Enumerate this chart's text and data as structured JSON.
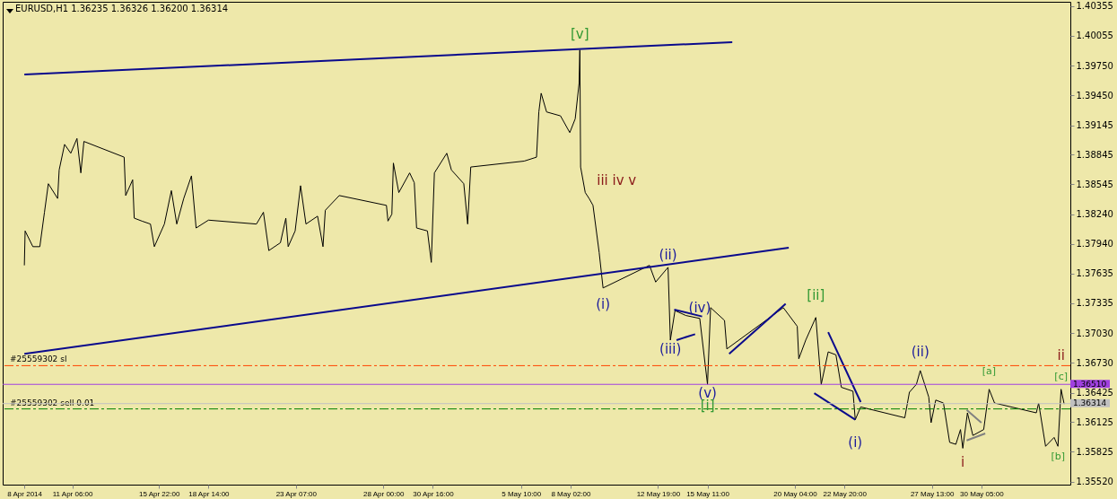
{
  "chart_data": {
    "type": "line",
    "title": "EURUSD,H1  1.36235 1.36326 1.36200 1.36314",
    "xlim": [
      "2014-04-07T12:00",
      "2014-06-04T00:00"
    ],
    "ylim": [
      1.3549,
      1.404
    ],
    "xticks": [
      {
        "value": "2014-04-08T16:00",
        "label": "8 Apr 2014"
      },
      {
        "value": "2014-04-11T06:00",
        "label": "11 Apr 06:00"
      },
      {
        "value": "2014-04-15T22:00",
        "label": "15 Apr 22:00"
      },
      {
        "value": "2014-04-18T14:00",
        "label": "18 Apr 14:00"
      },
      {
        "value": "2014-04-23T07:00",
        "label": "23 Apr 07:00"
      },
      {
        "value": "2014-04-28T00:00",
        "label": "28 Apr 00:00"
      },
      {
        "value": "2014-04-30T16:00",
        "label": "30 Apr 16:00"
      },
      {
        "value": "2014-05-05T10:00",
        "label": "5 May 10:00"
      },
      {
        "value": "2014-05-08T02:00",
        "label": "8 May 02:00"
      },
      {
        "value": "2014-05-12T19:00",
        "label": "12 May 19:00"
      },
      {
        "value": "2014-05-15T11:00",
        "label": "15 May 11:00"
      },
      {
        "value": "2014-05-20T04:00",
        "label": "20 May 04:00"
      },
      {
        "value": "2014-05-22T20:00",
        "label": "22 May 20:00"
      },
      {
        "value": "2014-05-27T13:00",
        "label": "27 May 13:00"
      },
      {
        "value": "2014-05-30T05:00",
        "label": "30 May 05:00"
      }
    ],
    "yticks": [
      1.40355,
      1.40055,
      {
        "value": 1.3975,
        "label": "1.39750"
      },
      {
        "value": 1.3945,
        "label": "1.39450"
      },
      1.39145,
      1.38845,
      1.38545,
      {
        "value": 1.3824,
        "label": "1.38240"
      },
      {
        "value": 1.3794,
        "label": "1.37940"
      },
      1.37635,
      1.37335,
      {
        "value": 1.3703,
        "label": "1.37030"
      },
      {
        "value": 1.3673,
        "label": "1.36730"
      },
      1.36425,
      1.36125,
      1.35825,
      {
        "value": 1.3552,
        "label": "1.35520"
      }
    ],
    "series": [
      {
        "color": "#000000",
        "x": [
          "2014-04-08T16:00",
          "2014-04-08T17:00",
          "2014-04-09T03:00",
          "2014-04-09T12:00",
          "2014-04-09T18:00",
          "2014-04-09T23:00",
          "2014-04-10T11:00",
          "2014-04-10T13:00",
          "2014-04-10T20:00",
          "2014-04-11T04:00",
          "2014-04-11T12:00",
          "2014-04-11T17:00",
          "2014-04-11T21:00",
          "2014-04-14T01:00",
          "2014-04-14T03:00",
          "2014-04-14T12:00",
          "2014-04-14T14:00",
          "2014-04-15T00:00",
          "2014-04-15T11:00",
          "2014-04-15T16:00",
          "2014-04-16T05:00",
          "2014-04-16T14:00",
          "2014-04-16T21:00",
          "2014-04-17T06:00",
          "2014-04-17T16:00",
          "2014-04-17T22:00",
          "2014-04-18T14:00",
          "2014-04-21T04:00",
          "2014-04-21T13:00",
          "2014-04-21T20:00",
          "2014-04-22T11:00",
          "2014-04-22T18:00",
          "2014-04-22T21:00",
          "2014-04-23T06:00",
          "2014-04-23T13:00",
          "2014-04-23T20:00",
          "2014-04-24T11:00",
          "2014-04-24T18:00",
          "2014-04-24T21:00",
          "2014-04-25T15:00",
          "2014-04-28T04:00",
          "2014-04-28T06:00",
          "2014-04-28T11:00",
          "2014-04-28T13:00",
          "2014-04-28T20:00",
          "2014-04-29T10:00",
          "2014-04-29T16:00",
          "2014-04-29T19:00",
          "2014-04-30T09:00",
          "2014-04-30T14:00",
          "2014-04-30T18:00",
          "2014-05-01T10:00",
          "2014-05-01T16:00",
          "2014-05-02T08:00",
          "2014-05-02T13:00",
          "2014-05-02T17:00",
          "2014-05-05T14:00",
          "2014-05-06T06:00",
          "2014-05-06T09:00",
          "2014-05-06T12:00",
          "2014-05-06T19:00",
          "2014-05-07T13:00",
          "2014-05-08T01:00",
          "2014-05-08T08:00",
          "2014-05-08T13:00",
          "2014-05-08T14:00",
          "2014-05-08T15:00",
          "2014-05-08T21:00",
          "2014-05-09T02:00",
          "2014-05-09T07:00",
          "2014-05-09T15:00",
          "2014-05-09T20:00",
          "2014-05-12T08:00",
          "2014-05-12T16:00",
          "2014-05-13T08:00",
          "2014-05-13T11:00",
          "2014-05-13T17:00",
          "2014-05-14T07:00",
          "2014-05-15T01:00",
          "2014-05-15T11:00",
          "2014-05-15T15:00",
          "2014-05-16T09:00",
          "2014-05-16T12:00",
          "2014-05-19T13:00",
          "2014-05-20T07:00",
          "2014-05-20T09:00",
          "2014-05-20T18:00",
          "2014-05-21T07:00",
          "2014-05-21T14:00",
          "2014-05-21T23:00",
          "2014-05-22T09:00",
          "2014-05-22T16:00",
          "2014-05-23T07:00",
          "2014-05-23T10:00",
          "2014-05-23T17:00",
          "2014-05-26T02:00",
          "2014-05-26T08:00",
          "2014-05-26T17:00",
          "2014-05-26T22:00",
          "2014-05-27T09:00",
          "2014-05-27T12:00",
          "2014-05-27T18:00",
          "2014-05-28T04:00",
          "2014-05-28T12:00",
          "2014-05-28T20:00",
          "2014-05-29T02:00",
          "2014-05-29T05:00",
          "2014-05-29T11:00",
          "2014-05-29T18:00",
          "2014-05-30T08:00",
          "2014-05-30T15:00",
          "2014-05-30T22:00",
          "2014-06-02T04:00",
          "2014-06-02T07:00",
          "2014-06-02T16:00",
          "2014-06-03T03:00",
          "2014-06-03T08:00",
          "2014-06-03T12:00",
          "2014-06-03T16:00"
        ],
        "values": [
          1.3772,
          1.3807,
          1.3791,
          1.3791,
          1.3826,
          1.3855,
          1.384,
          1.3869,
          1.3895,
          1.3886,
          1.3901,
          1.3866,
          1.3898,
          1.3882,
          1.3843,
          1.3859,
          1.382,
          1.3817,
          1.3814,
          1.3791,
          1.3814,
          1.3848,
          1.3814,
          1.384,
          1.3863,
          1.381,
          1.3818,
          1.3814,
          1.3826,
          1.3787,
          1.3795,
          1.382,
          1.3791,
          1.3807,
          1.3853,
          1.3814,
          1.3822,
          1.3791,
          1.3828,
          1.3843,
          1.3833,
          1.3817,
          1.3824,
          1.3876,
          1.3846,
          1.3866,
          1.3856,
          1.381,
          1.3807,
          1.3775,
          1.3866,
          1.3886,
          1.3869,
          1.3855,
          1.3814,
          1.3872,
          1.3878,
          1.3882,
          1.3928,
          1.3947,
          1.3928,
          1.3924,
          1.3907,
          1.3921,
          1.3957,
          1.3991,
          1.3872,
          1.3846,
          1.384,
          1.3833,
          1.3785,
          1.3749,
          1.3772,
          1.3755,
          1.377,
          1.3696,
          1.3726,
          1.3721,
          1.3718,
          1.3651,
          1.3729,
          1.3716,
          1.3687,
          1.3729,
          1.371,
          1.3677,
          1.3696,
          1.3719,
          1.3651,
          1.3684,
          1.3681,
          1.3648,
          1.3644,
          1.3615,
          1.3628,
          1.3617,
          1.3643,
          1.3651,
          1.3665,
          1.3638,
          1.3612,
          1.3635,
          1.3632,
          1.3592,
          1.359,
          1.3605,
          1.3586,
          1.3622,
          1.3599,
          1.3605,
          1.3646,
          1.3632,
          1.3622,
          1.3632,
          1.3588,
          1.3597,
          1.3588,
          1.3646,
          1.3631
        ]
      },
      {
        "color": "#0a0a8c",
        "x": [
          "2014-04-08T16:00",
          "2014-05-16T19:00"
        ],
        "values": [
          1.3966,
          1.3999
        ]
      },
      {
        "color": "#0a0a8c",
        "x": [
          "2014-04-08T16:00",
          "2014-05-19T20:00"
        ],
        "values": [
          1.3682,
          1.379
        ]
      },
      {
        "color": "#0a0a8c",
        "x": [
          "2014-05-13T16:00",
          "2014-05-15T04:00"
        ],
        "values": [
          1.3727,
          1.372
        ]
      },
      {
        "color": "#0a0a8c",
        "x": [
          "2014-05-13T19:00",
          "2014-05-14T19:00"
        ],
        "values": [
          1.3696,
          1.3702
        ]
      },
      {
        "color": "#0a0a8c",
        "x": [
          "2014-05-16T15:00",
          "2014-05-19T16:00"
        ],
        "values": [
          1.3682,
          1.3733
        ]
      },
      {
        "color": "#0a0a8c",
        "x": [
          "2014-05-21T23:00",
          "2014-05-23T17:00"
        ],
        "values": [
          1.3704,
          1.3633
        ]
      },
      {
        "color": "#0a0a8c",
        "x": [
          "2014-05-21T05:00",
          "2014-05-23T10:00"
        ],
        "values": [
          1.3642,
          1.3615
        ]
      },
      {
        "color": "#808080",
        "x": [
          "2014-05-29T10:00",
          "2014-05-30T05:00"
        ],
        "values": [
          1.3625,
          1.3612
        ]
      },
      {
        "color": "#808080",
        "x": [
          "2014-05-29T10:00",
          "2014-05-30T10:00"
        ],
        "values": [
          1.3594,
          1.3601
        ]
      }
    ],
    "ref_lines": [
      {
        "axis": "y",
        "value": 1.367,
        "label": "#25559302 sl",
        "color": "#ff4500",
        "line_style": "dashed"
      },
      {
        "axis": "y",
        "value": 1.3626,
        "label": "#25559302 sell 0.01",
        "color": "#008000",
        "line_style": "dashed"
      },
      {
        "axis": "y",
        "value": 1.3651,
        "label": "1.36510",
        "color": "#a040e0",
        "line_style": "solid"
      },
      {
        "axis": "y",
        "value": 1.36314,
        "label": "1.36314",
        "color": "#c0c0c0",
        "line_style": "solid"
      }
    ],
    "annotations": [
      {
        "text": "[v]",
        "x": "2014-05-08T14:00",
        "y": 1.3991
      },
      {
        "text": "(i)",
        "x": "2014-05-09T20:00",
        "y": 1.3749
      },
      {
        "text": "(ii)",
        "x": "2014-05-13T08:00",
        "y": 1.377
      },
      {
        "text": "(iii)",
        "x": "2014-05-13T11:00",
        "y": 1.3696
      },
      {
        "text": "(iv)",
        "x": "2014-05-15T01:00",
        "y": 1.3718
      },
      {
        "text": "(v)",
        "x": "2014-05-15T11:00",
        "y": 1.3651
      },
      {
        "text": "[i]",
        "x": "2014-05-15T11:00",
        "y": 1.3651
      },
      {
        "text": "[ii]",
        "x": "2014-05-21T07:00",
        "y": 1.3719
      },
      "iii  iv v",
      {
        "text": "(i)",
        "x": "2014-05-23T10:00",
        "y": 1.3615
      },
      {
        "text": "(ii)",
        "x": "2014-05-26T22:00",
        "y": 1.3665
      },
      {
        "text": "[a]",
        "x": "2014-05-30T15:00",
        "y": 1.3646
      },
      {
        "text": "ii",
        "x": "2014-06-03T12:00",
        "y": 1.3646
      },
      {
        "text": "[c]",
        "x": "2014-06-03T12:00",
        "y": 1.3646
      },
      {
        "text": "i",
        "x": "2014-05-29T05:00",
        "y": 1.3586
      },
      {
        "text": "[b]",
        "x": "2014-06-03T08:00",
        "y": 1.3588
      }
    ]
  }
}
